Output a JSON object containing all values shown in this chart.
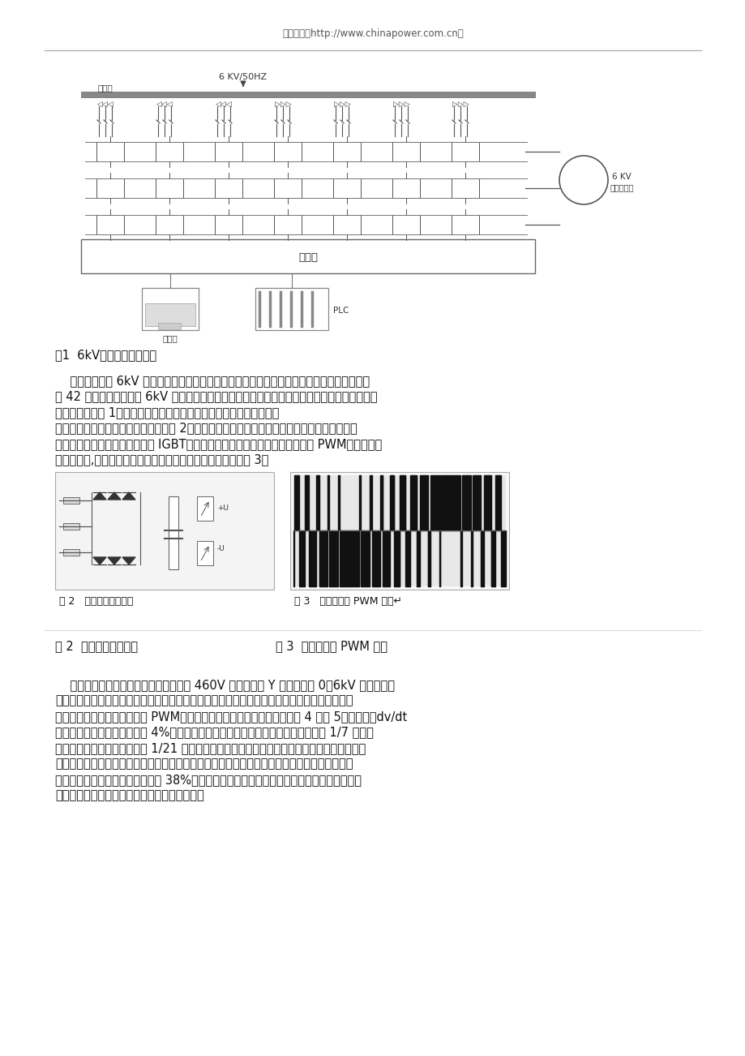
{
  "header_text": "中国电力（http://www.chinapower.com.cn）",
  "header_color": "#555555",
  "header_fontsize": 8.5,
  "fig1_caption": "图1  6kV变频器系统结构图",
  "fig2_caption_inline": "图 2   功率单元电路结构",
  "fig3_caption_inline": "图 3   单元输出的 PWM 波形↵",
  "fig2_caption_below": "图 2  功率单元电路结构",
  "fig3_caption_below": "图 3  单元输出的 PWM 波形",
  "para1_lines": [
    "    移相变压器将 6kV 厂用电降压后向各功率单元供电，副边绕组分成三组，采用多级移相叠加",
    "的 42 脉冲整流方式，使 6kV 厂用电侧（输入侧）的电流波形大大改善，在负载情况下输入侧的",
    "功率因数接近于 1，可以减少无功功率引起的厂用电系统的电能损耗。",
    "功率单元为模块化结构，电路结构见图 2。每个功率模块结构及电气性能完全一致，可以互换。",
    "整流侧为二极管三相全桥，控制 IGBT（绝缘门控双极晶体管）逆变桥正弦输出 PWM（脉冲宽度",
    "调制）波形,输出凝结水泵所需频率的单相交流电，其波形见图 3。"
  ],
  "para2_lines": [
    "    三串（即三相）各串联七个额定电压为 460V 的功率单元 Y 型接法输出 0～6kV 变频电压向",
    "凝结水泵电动机供电。同一相各串联功率单元输出相同幅值和相位的基波电压，且载波之间互相",
    "错开一定电角度，实现多电平 PWM，使输出电压和电流接近正弦波（见图 4 与图 5）。因此，dv/dt",
    "很小，总的谐波电流失真低于 4%，可直接用于普通异步电动机。每个功率单元产生 1/7 的相电",
    "压，输出电动机所需的电流和 1/21 的电功率。当某个单元发生故障时，系统可自动将该单元和",
    "其他两相对应的单元旁路，使变频器降输出电压运行。采用变频调速后，凝结水泵电动机消耗的",
    "电功率至少比电动机的额定功率低 38%，因此旁路两级功率模块降电压运行也完全能满足输送",
    "凝结水的要求，提高了凝结水泵输水的可靠性。"
  ],
  "bg_color": "#ffffff",
  "text_color": "#111111",
  "diagram_gray": "#888888",
  "diagram_light": "#bbbbbb"
}
